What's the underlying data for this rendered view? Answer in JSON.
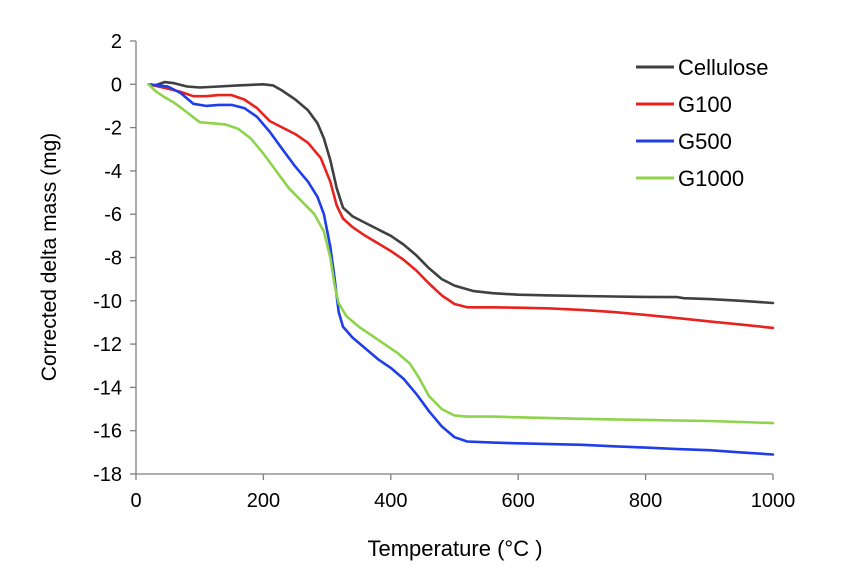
{
  "chart_data": {
    "type": "line",
    "xlabel": "Temperature (°C )",
    "ylabel": "Corrected delta mass (mg)",
    "xlim": [
      0,
      1000
    ],
    "ylim": [
      -18,
      2
    ],
    "xticks": [
      "0",
      "200",
      "400",
      "600",
      "800",
      "1000"
    ],
    "yticks": [
      "2",
      "0",
      "-2",
      "-4",
      "-6",
      "-8",
      "-10",
      "-12",
      "-14",
      "-16",
      "-18"
    ],
    "grid": false,
    "legend": "top-right",
    "series": [
      {
        "name": "Cellulose",
        "color": "#404040",
        "points": [
          [
            20,
            0.0
          ],
          [
            30,
            -0.05
          ],
          [
            45,
            0.1
          ],
          [
            60,
            0.05
          ],
          [
            80,
            -0.1
          ],
          [
            100,
            -0.15
          ],
          [
            130,
            -0.1
          ],
          [
            160,
            -0.05
          ],
          [
            200,
            0.0
          ],
          [
            215,
            -0.05
          ],
          [
            230,
            -0.3
          ],
          [
            250,
            -0.7
          ],
          [
            270,
            -1.2
          ],
          [
            285,
            -1.8
          ],
          [
            295,
            -2.5
          ],
          [
            305,
            -3.5
          ],
          [
            315,
            -4.8
          ],
          [
            325,
            -5.7
          ],
          [
            340,
            -6.1
          ],
          [
            360,
            -6.4
          ],
          [
            380,
            -6.7
          ],
          [
            400,
            -7.0
          ],
          [
            420,
            -7.4
          ],
          [
            440,
            -7.9
          ],
          [
            460,
            -8.5
          ],
          [
            480,
            -9.0
          ],
          [
            500,
            -9.3
          ],
          [
            530,
            -9.55
          ],
          [
            560,
            -9.65
          ],
          [
            600,
            -9.72
          ],
          [
            650,
            -9.75
          ],
          [
            700,
            -9.78
          ],
          [
            750,
            -9.8
          ],
          [
            800,
            -9.82
          ],
          [
            850,
            -9.83
          ],
          [
            860,
            -9.88
          ],
          [
            900,
            -9.92
          ],
          [
            950,
            -10.0
          ],
          [
            1000,
            -10.1
          ]
        ]
      },
      {
        "name": "G100",
        "color": "#e8231f",
        "points": [
          [
            20,
            0.0
          ],
          [
            35,
            -0.1
          ],
          [
            50,
            -0.2
          ],
          [
            70,
            -0.35
          ],
          [
            90,
            -0.55
          ],
          [
            110,
            -0.55
          ],
          [
            130,
            -0.5
          ],
          [
            150,
            -0.5
          ],
          [
            170,
            -0.7
          ],
          [
            190,
            -1.1
          ],
          [
            210,
            -1.7
          ],
          [
            230,
            -2.0
          ],
          [
            250,
            -2.3
          ],
          [
            270,
            -2.7
          ],
          [
            290,
            -3.4
          ],
          [
            305,
            -4.5
          ],
          [
            315,
            -5.6
          ],
          [
            325,
            -6.2
          ],
          [
            340,
            -6.6
          ],
          [
            360,
            -7.0
          ],
          [
            380,
            -7.35
          ],
          [
            400,
            -7.7
          ],
          [
            420,
            -8.1
          ],
          [
            440,
            -8.6
          ],
          [
            460,
            -9.2
          ],
          [
            480,
            -9.75
          ],
          [
            500,
            -10.15
          ],
          [
            520,
            -10.3
          ],
          [
            560,
            -10.3
          ],
          [
            600,
            -10.32
          ],
          [
            650,
            -10.35
          ],
          [
            700,
            -10.42
          ],
          [
            750,
            -10.52
          ],
          [
            800,
            -10.65
          ],
          [
            850,
            -10.8
          ],
          [
            900,
            -10.95
          ],
          [
            950,
            -11.1
          ],
          [
            1000,
            -11.25
          ]
        ]
      },
      {
        "name": "G500",
        "color": "#1f3de8",
        "points": [
          [
            20,
            0.0
          ],
          [
            35,
            -0.05
          ],
          [
            50,
            -0.1
          ],
          [
            70,
            -0.4
          ],
          [
            90,
            -0.9
          ],
          [
            110,
            -1.0
          ],
          [
            130,
            -0.95
          ],
          [
            150,
            -0.95
          ],
          [
            170,
            -1.1
          ],
          [
            190,
            -1.5
          ],
          [
            210,
            -2.2
          ],
          [
            230,
            -3.0
          ],
          [
            250,
            -3.8
          ],
          [
            270,
            -4.5
          ],
          [
            285,
            -5.2
          ],
          [
            295,
            -6.0
          ],
          [
            305,
            -7.5
          ],
          [
            312,
            -9.0
          ],
          [
            318,
            -10.5
          ],
          [
            325,
            -11.2
          ],
          [
            340,
            -11.7
          ],
          [
            360,
            -12.2
          ],
          [
            380,
            -12.7
          ],
          [
            400,
            -13.1
          ],
          [
            420,
            -13.6
          ],
          [
            440,
            -14.3
          ],
          [
            460,
            -15.1
          ],
          [
            480,
            -15.8
          ],
          [
            500,
            -16.3
          ],
          [
            520,
            -16.5
          ],
          [
            560,
            -16.55
          ],
          [
            600,
            -16.58
          ],
          [
            650,
            -16.62
          ],
          [
            700,
            -16.65
          ],
          [
            750,
            -16.72
          ],
          [
            800,
            -16.78
          ],
          [
            850,
            -16.85
          ],
          [
            900,
            -16.9
          ],
          [
            950,
            -17.0
          ],
          [
            1000,
            -17.1
          ]
        ]
      },
      {
        "name": "G1000",
        "color": "#8dd44a",
        "points": [
          [
            20,
            0.0
          ],
          [
            30,
            -0.3
          ],
          [
            45,
            -0.6
          ],
          [
            60,
            -0.85
          ],
          [
            80,
            -1.3
          ],
          [
            100,
            -1.75
          ],
          [
            120,
            -1.8
          ],
          [
            140,
            -1.85
          ],
          [
            160,
            -2.05
          ],
          [
            180,
            -2.5
          ],
          [
            200,
            -3.2
          ],
          [
            220,
            -4.0
          ],
          [
            240,
            -4.8
          ],
          [
            260,
            -5.4
          ],
          [
            280,
            -6.0
          ],
          [
            295,
            -6.8
          ],
          [
            305,
            -8.0
          ],
          [
            312,
            -9.3
          ],
          [
            318,
            -10.1
          ],
          [
            330,
            -10.7
          ],
          [
            350,
            -11.2
          ],
          [
            370,
            -11.6
          ],
          [
            390,
            -12.0
          ],
          [
            410,
            -12.4
          ],
          [
            430,
            -12.9
          ],
          [
            445,
            -13.6
          ],
          [
            460,
            -14.4
          ],
          [
            480,
            -15.0
          ],
          [
            500,
            -15.3
          ],
          [
            520,
            -15.35
          ],
          [
            560,
            -15.35
          ],
          [
            600,
            -15.38
          ],
          [
            650,
            -15.42
          ],
          [
            700,
            -15.45
          ],
          [
            750,
            -15.48
          ],
          [
            800,
            -15.5
          ],
          [
            850,
            -15.53
          ],
          [
            900,
            -15.55
          ],
          [
            950,
            -15.6
          ],
          [
            1000,
            -15.65
          ]
        ]
      }
    ]
  }
}
